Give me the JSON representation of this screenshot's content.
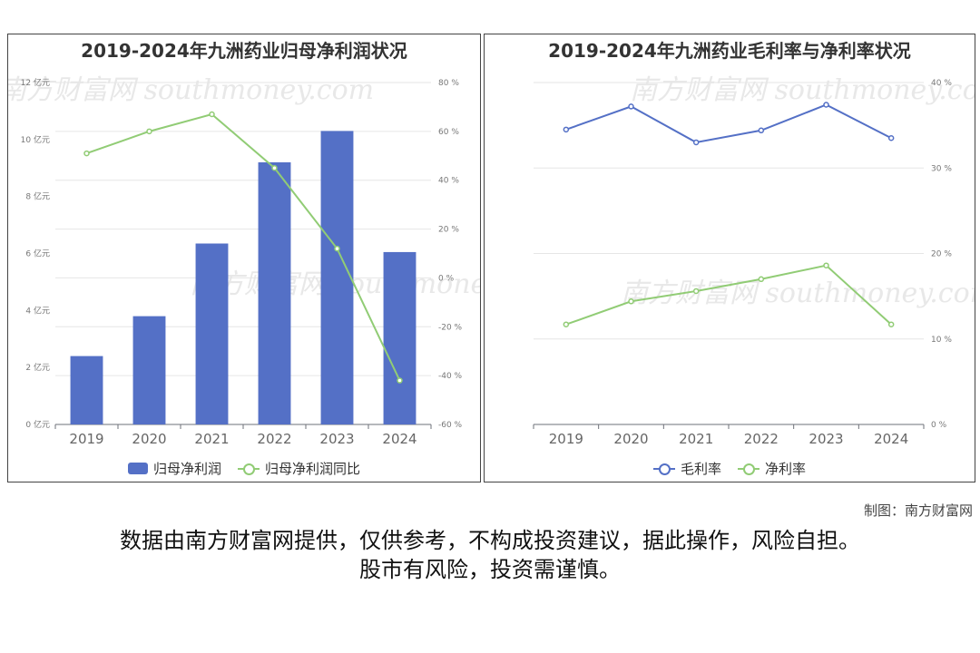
{
  "watermark": {
    "brand": "南方财富网",
    "site": "southmoney.com"
  },
  "left": {
    "title": "2019-2024年九洲药业归母净利润状况",
    "legend": [
      "归母净利润",
      "归母净利润同比"
    ]
  },
  "right": {
    "title": "2019-2024年九洲药业毛利率与净利率状况",
    "legend": [
      "毛利率",
      "净利率"
    ]
  },
  "chart_data": [
    {
      "type": "bar",
      "title": "2019-2024年九洲药业归母净利润状况",
      "categories": [
        "2019",
        "2020",
        "2021",
        "2022",
        "2023",
        "2024"
      ],
      "series": [
        {
          "name": "归母净利润",
          "type": "bar",
          "axis": "left",
          "color": "#5470c6",
          "values": [
            2.4,
            3.8,
            6.35,
            9.2,
            10.3,
            6.05
          ]
        },
        {
          "name": "归母净利润同比",
          "type": "line",
          "axis": "right",
          "color": "#91cc75",
          "values": [
            51,
            60,
            67,
            45,
            12,
            -42
          ]
        }
      ],
      "y_left": {
        "ticks": [
          "0 亿元",
          "2 亿元",
          "4 亿元",
          "6 亿元",
          "8 亿元",
          "10 亿元",
          "12 亿元"
        ],
        "min": 0,
        "max": 12
      },
      "y_right": {
        "ticks": [
          "-60 %",
          "-40 %",
          "-20 %",
          "0 %",
          "20 %",
          "40 %",
          "60 %",
          "80 %"
        ],
        "min": -60,
        "max": 80
      },
      "grid": true,
      "legend_position": "bottom"
    },
    {
      "type": "line",
      "title": "2019-2024年九洲药业毛利率与净利率状况",
      "categories": [
        "2019",
        "2020",
        "2021",
        "2022",
        "2023",
        "2024"
      ],
      "series": [
        {
          "name": "毛利率",
          "color": "#5470c6",
          "values": [
            34.5,
            37.2,
            33.0,
            34.4,
            37.4,
            33.5
          ]
        },
        {
          "name": "净利率",
          "color": "#91cc75",
          "values": [
            11.7,
            14.4,
            15.6,
            17.0,
            18.6,
            11.7
          ]
        }
      ],
      "y_right": {
        "ticks": [
          "0 %",
          "10 %",
          "20 %",
          "30 %",
          "40 %"
        ],
        "min": 0,
        "max": 40
      },
      "grid": true,
      "legend_position": "bottom"
    }
  ],
  "credit": "制图：南方财富网",
  "disclaimer": [
    "数据由南方财富网提供，仅供参考，不构成投资建议，据此操作，风险自担。",
    "股市有风险，投资需谨慎。"
  ]
}
